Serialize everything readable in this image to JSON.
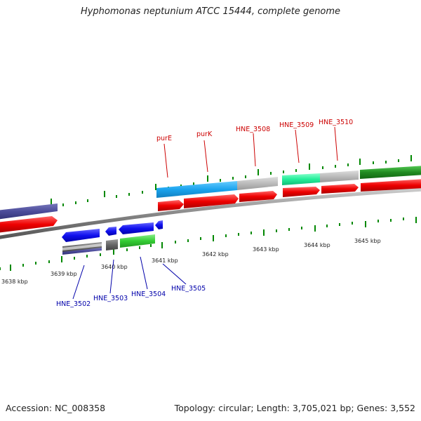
{
  "title": "Hyphomonas neptunium ATCC 15444, complete genome",
  "footer": {
    "accession": "Accession: NC_008358",
    "topology": "Topology: circular; Length: 3,705,021 bp; Genes: 3,552"
  },
  "colors": {
    "label_top": "#cc0000",
    "label_bottom": "#0000aa",
    "tick": "#008800",
    "backbone": "#888888"
  },
  "scale_labels": [
    "3638 kbp",
    "3639 kbp",
    "3640 kbp",
    "3641 kbp",
    "3642 kbp",
    "3643 kbp",
    "3644 kbp",
    "3645 kbp"
  ],
  "gene_labels_top": [
    "purE",
    "purK",
    "HNE_3508",
    "HNE_3509",
    "HNE_3510"
  ],
  "gene_labels_bottom": [
    "HNE_3502",
    "HNE_3503",
    "HNE_3504",
    "HNE_3505"
  ]
}
